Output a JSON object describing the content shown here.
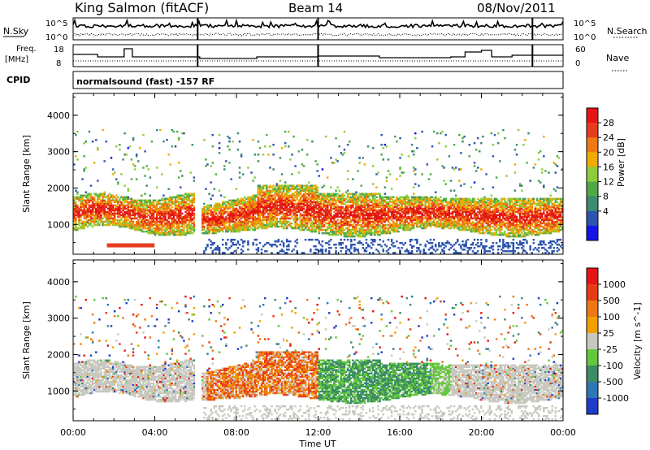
{
  "header": {
    "station": "King Salmon (fitACF)",
    "beam": "Beam 14",
    "date": "08/Nov/2011"
  },
  "top_panels": {
    "nsky_label": "N.Sky",
    "nsearch_label": "N.Search",
    "counts_ticks": [
      "10^5",
      "10^0"
    ],
    "freq_label_line1": "Freq.",
    "freq_label_line2": "[MHz]",
    "freq_ticks": [
      "18",
      "8"
    ],
    "nave_label": "Nave",
    "nave_ticks": [
      "60",
      "0"
    ],
    "cpid_label": "CPID",
    "cpid_text": "normalsound (fast) -157 RF"
  },
  "chart_data": [
    {
      "type": "heatmap",
      "name": "Power",
      "ylabel": "Slant Range [km]",
      "xlabel": "",
      "ylim": [
        180,
        4600
      ],
      "xlim_hours": [
        0,
        24
      ],
      "yticks": [
        "1000",
        "2000",
        "3000",
        "4000"
      ],
      "colorbar_label": "Power [dB]",
      "colorbar_ticks": [
        "28",
        "24",
        "20",
        "16",
        "12",
        "8",
        "4"
      ],
      "colors": [
        "#1414e6",
        "#2d55b0",
        "#3c8c6e",
        "#4faa46",
        "#8ccd3c",
        "#f0aa00",
        "#f07814",
        "#e63c1e",
        "#e61414"
      ]
    },
    {
      "type": "heatmap",
      "name": "Velocity",
      "ylabel": "Slant Range [km]",
      "xlabel": "Time UT",
      "ylim": [
        180,
        4600
      ],
      "xlim_hours": [
        0,
        24
      ],
      "yticks": [
        "1000",
        "2000",
        "3000",
        "4000"
      ],
      "colorbar_label": "Velocity [m s^-1]",
      "colorbar_ticks": [
        "1000",
        "500",
        "100",
        "25",
        "-25",
        "-100",
        "-500",
        "-1000"
      ],
      "colors": [
        "#1e3cc8",
        "#2d78b4",
        "#3c8c64",
        "#64c83c",
        "#c8c8c0",
        "#f0a000",
        "#f07814",
        "#e63c14",
        "#e61414"
      ]
    }
  ],
  "x_ticks": [
    "00:00",
    "04:00",
    "08:00",
    "12:00",
    "16:00",
    "20:00",
    "00:00"
  ]
}
